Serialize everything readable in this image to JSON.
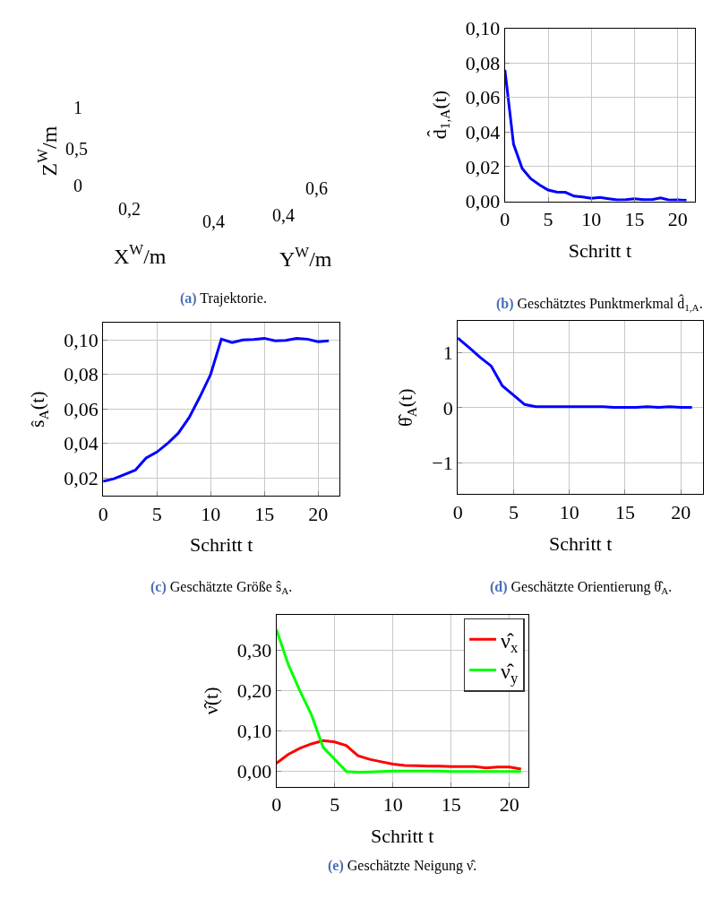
{
  "chart_data": [
    {
      "type": "other",
      "title": "(a) Trajektorie.",
      "xlabel": "X$^{W}$/m",
      "ylabel": "Y$^{W}$/m",
      "annotations": [
        "Z$^{W}$/m",
        "0,2",
        "0,4",
        "0,4",
        "0,6",
        "0",
        "0,5",
        "1"
      ]
    },
    {
      "type": "line",
      "title": "(b) Geschätztes Punktmerkmal d̂$_{1,A}$.",
      "xlabel": "Schritt t",
      "ylabel": "d̂$_{1,A}$(t)",
      "grid": true,
      "x": [
        0,
        1,
        2,
        3,
        4,
        5,
        6,
        7,
        8,
        9,
        10,
        11,
        12,
        13,
        14,
        15,
        16,
        17,
        18,
        19,
        20,
        21
      ],
      "series": [
        {
          "color": "#0000ff",
          "values": [
            0.076,
            0.033,
            0.019,
            0.013,
            0.0095,
            0.0065,
            0.0053,
            0.0052,
            0.003,
            0.0025,
            0.0017,
            0.0022,
            0.0015,
            0.0008,
            0.001,
            0.0015,
            0.001,
            0.001,
            0.002,
            0.0007,
            0.0008,
            0.0005
          ]
        }
      ],
      "xlim": [
        0,
        22
      ],
      "xticks": [
        0,
        5,
        10,
        15,
        20
      ],
      "ylim": [
        0,
        0.1
      ],
      "yticks": [
        {
          "value": 0,
          "label": "0,00"
        },
        {
          "value": 0.02,
          "label": "0,02"
        },
        {
          "value": 0.04,
          "label": "0,04"
        },
        {
          "value": 0.06,
          "label": "0,06"
        },
        {
          "value": 0.08,
          "label": "0,08"
        },
        {
          "value": 0.1,
          "label": "0,10"
        }
      ]
    },
    {
      "type": "line",
      "title": "(c) Geschätzte Größe ŝ$_{A}$.",
      "xlabel": "Schritt t",
      "ylabel": "ŝ$_{A}$(t)",
      "grid": true,
      "x": [
        0,
        1,
        2,
        3,
        4,
        5,
        6,
        7,
        8,
        9,
        10,
        11,
        12,
        13,
        14,
        15,
        16,
        17,
        18,
        19,
        20,
        21
      ],
      "series": [
        {
          "color": "#0000ff",
          "values": [
            0.018,
            0.0195,
            0.022,
            0.0245,
            0.0315,
            0.035,
            0.04,
            0.046,
            0.055,
            0.067,
            0.08,
            0.1005,
            0.0985,
            0.1,
            0.1003,
            0.101,
            0.0995,
            0.0998,
            0.101,
            0.1005,
            0.099,
            0.0995
          ]
        }
      ],
      "xlim": [
        0,
        22
      ],
      "xticks": [
        0,
        5,
        10,
        15,
        20
      ],
      "ylim": [
        0.0096,
        0.11
      ],
      "yticks": [
        {
          "value": 0.02,
          "label": "0,02"
        },
        {
          "value": 0.04,
          "label": "0,04"
        },
        {
          "value": 0.06,
          "label": "0,06"
        },
        {
          "value": 0.08,
          "label": "0,08"
        },
        {
          "value": 0.1,
          "label": "0,10"
        }
      ]
    },
    {
      "type": "line",
      "title": "(d) Geschätzte Orientierung θ̂$_{A}$.",
      "xlabel": "Schritt t",
      "ylabel": "θ̂$_{A}$(t)",
      "grid": true,
      "x": [
        0,
        1,
        2,
        3,
        4,
        5,
        6,
        7,
        8,
        9,
        10,
        11,
        12,
        13,
        14,
        15,
        16,
        17,
        18,
        19,
        20,
        21
      ],
      "series": [
        {
          "color": "#0000ff",
          "values": [
            1.27,
            1.1,
            0.92,
            0.76,
            0.4,
            0.23,
            0.06,
            0.02,
            0.02,
            0.02,
            0.02,
            0.02,
            0.02,
            0.02,
            0.01,
            0.01,
            0.01,
            0.02,
            0.01,
            0.02,
            0.01,
            0.01
          ]
        }
      ],
      "xlim": [
        0,
        22
      ],
      "xticks": [
        0,
        5,
        10,
        15,
        20
      ],
      "ylim": [
        -1.57,
        1.58
      ],
      "yticks": [
        {
          "value": -1,
          "label": "−1"
        },
        0,
        1
      ]
    },
    {
      "type": "line",
      "title": "(e) Geschätzte Neigung ν̂.",
      "xlabel": "Schritt t",
      "ylabel": "ν̂(t)",
      "grid": true,
      "legend": "top right",
      "x": [
        0,
        1,
        2,
        3,
        4,
        5,
        6,
        7,
        8,
        9,
        10,
        11,
        12,
        13,
        14,
        15,
        16,
        17,
        18,
        19,
        20,
        21
      ],
      "series": [
        {
          "name": "ν̂$_{x}$",
          "color": "#ff0000",
          "values": [
            0.02,
            0.042,
            0.057,
            0.068,
            0.076,
            0.073,
            0.064,
            0.039,
            0.03,
            0.024,
            0.018,
            0.015,
            0.014,
            0.013,
            0.013,
            0.012,
            0.012,
            0.012,
            0.009,
            0.011,
            0.011,
            0.006
          ]
        },
        {
          "name": "ν̂$_{y}$",
          "color": "#00ff00",
          "values": [
            0.35,
            0.265,
            0.2,
            0.14,
            0.06,
            0.03,
            0.0,
            -0.002,
            -0.001,
            0,
            0.001,
            0.001,
            0.001,
            0.001,
            0.001,
            0,
            0,
            0,
            0,
            0,
            0,
            0
          ]
        }
      ],
      "xlim": [
        0,
        21.6
      ],
      "xticks": [
        0,
        5,
        10,
        15,
        20
      ],
      "ylim": [
        -0.038,
        0.387
      ],
      "yticks": [
        {
          "value": 0,
          "label": "0,00"
        },
        {
          "value": 0.1,
          "label": "0,10"
        },
        {
          "value": 0.2,
          "label": "0,20"
        },
        {
          "value": 0.3,
          "label": "0,30"
        }
      ]
    }
  ]
}
